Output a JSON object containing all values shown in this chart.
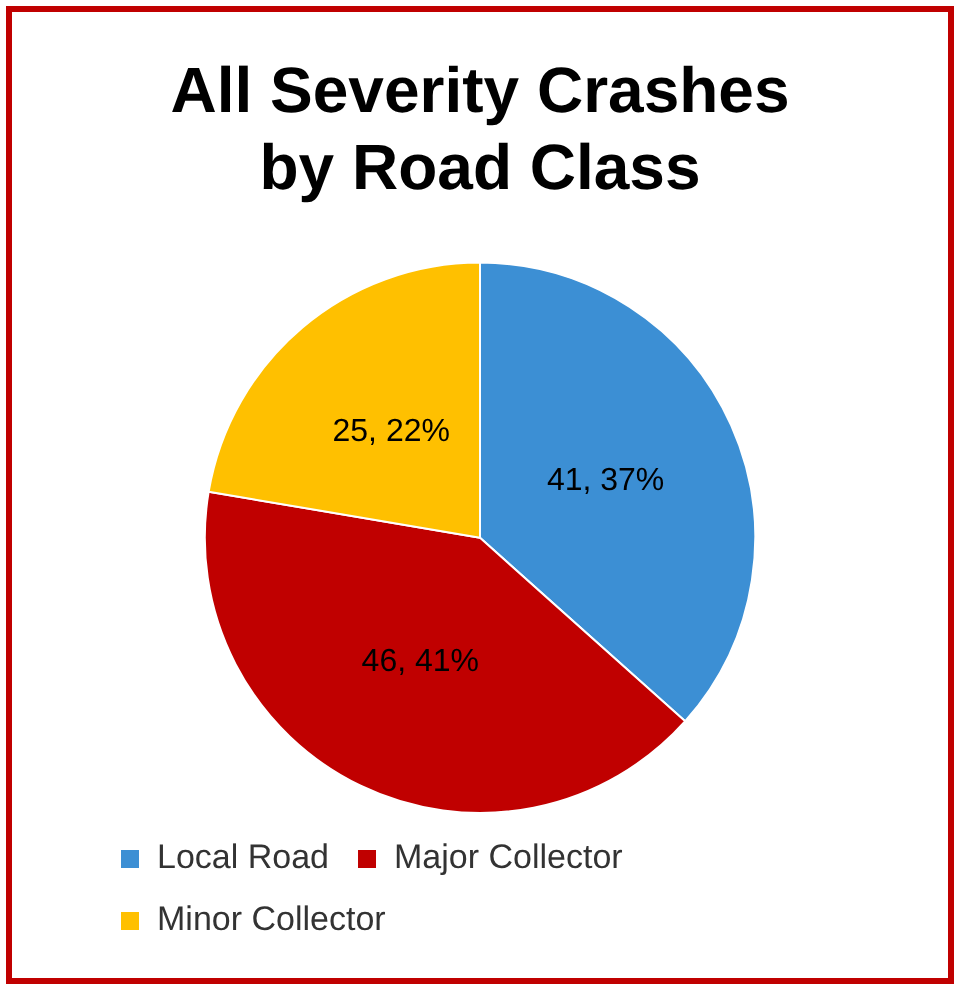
{
  "chart_data": {
    "type": "pie",
    "title": "All Severity Crashes by Road Class",
    "categories": [
      "Local Road",
      "Major Collector",
      "Minor Collector"
    ],
    "values": [
      41,
      46,
      25
    ],
    "colors": [
      "#3c8fd4",
      "#c00000",
      "#ffc000"
    ],
    "value_labels": [
      "41, 37%",
      "46, 41%",
      "25, 22%"
    ],
    "legend": "bottom"
  }
}
